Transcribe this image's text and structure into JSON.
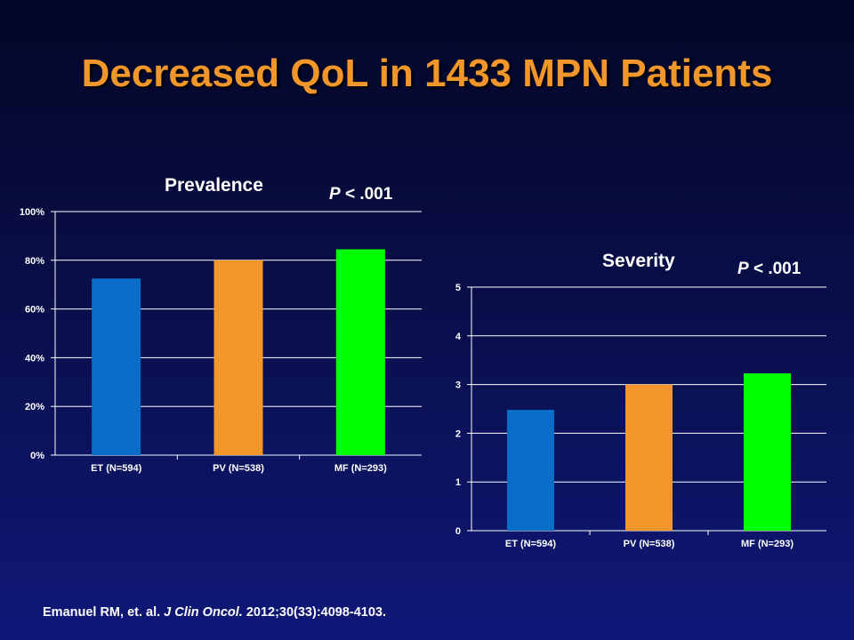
{
  "slide": {
    "title": "Decreased QoL in 1433 MPN Patients"
  },
  "citation": {
    "authors": "Emanuel RM, et. al. ",
    "journal": "J Clin Oncol.",
    "details": " 2012;30(33):4098-4103."
  },
  "colors": {
    "title": "#f0962a",
    "background": "#0a1050",
    "bars": [
      "#0a6ec8",
      "#f0962a",
      "#00ff00"
    ]
  },
  "chart_data": [
    {
      "type": "bar",
      "title": "Prevalence",
      "pvalue_label": "P",
      "pvalue_text": " < .001",
      "categories": [
        "ET (N=594)",
        "PV (N=538)",
        "MF (N=293)"
      ],
      "values": [
        72.5,
        80,
        84.5
      ],
      "ylim": [
        0,
        100
      ],
      "yticks": [
        0,
        20,
        40,
        60,
        80,
        100
      ],
      "ytick_labels": [
        "0%",
        "20%",
        "40%",
        "60%",
        "80%",
        "100%"
      ],
      "grid": true,
      "xlabel": "",
      "ylabel": ""
    },
    {
      "type": "bar",
      "title": "Severity",
      "pvalue_label": "P",
      "pvalue_text": " < .001",
      "categories": [
        "ET (N=594)",
        "PV (N=538)",
        "MF (N=293)"
      ],
      "values": [
        2.48,
        3.0,
        3.23
      ],
      "ylim": [
        0,
        5
      ],
      "yticks": [
        0,
        1,
        2,
        3,
        4,
        5
      ],
      "ytick_labels": [
        "0",
        "1",
        "2",
        "3",
        "4",
        "5"
      ],
      "grid": true,
      "xlabel": "",
      "ylabel": ""
    }
  ]
}
